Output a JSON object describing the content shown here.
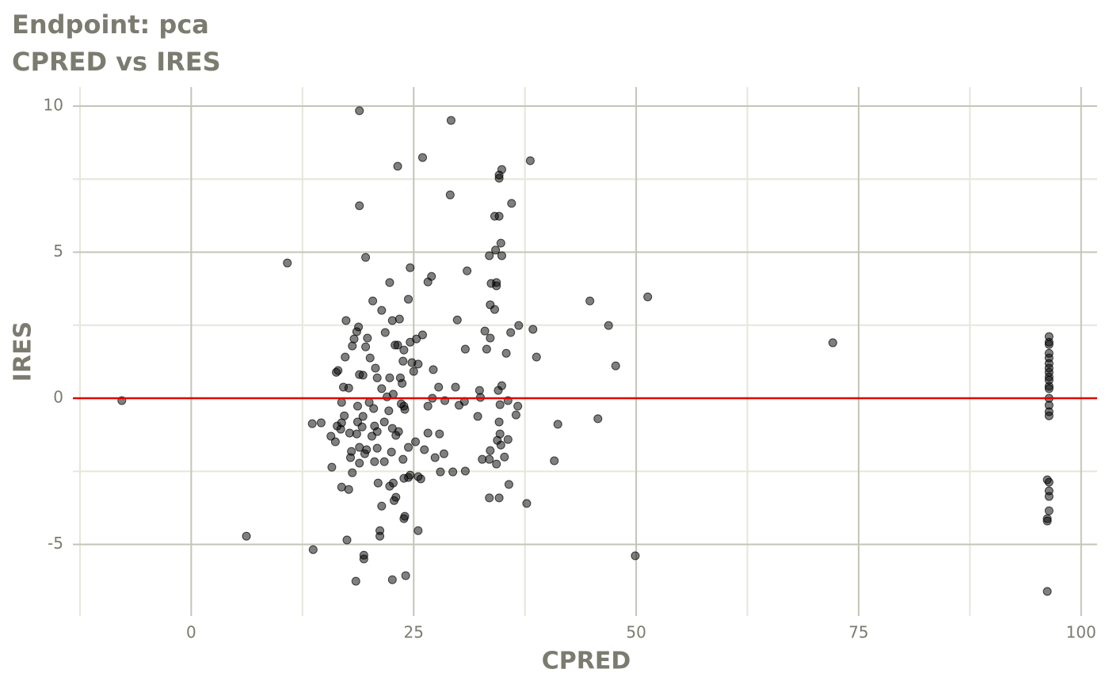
{
  "chart_data": {
    "type": "scatter",
    "title": "Endpoint:  pca",
    "subtitle": "CPRED vs IRES",
    "x_label": "CPRED",
    "y_label": "IRES",
    "color": "#000000",
    "hline": 0,
    "hline_color": "#e00000",
    "grid": true,
    "xlim": [
      -13.3,
      101.8
    ],
    "xticks": [
      0,
      25,
      50,
      75,
      100
    ],
    "ylim": [
      -7.45,
      10.65
    ],
    "yticks": [
      -5,
      0,
      5,
      10
    ],
    "x": [
      -7.8,
      10.8,
      6.2,
      13.7,
      18.9,
      29.2,
      26.0,
      23.2,
      38.1,
      29.1,
      34.9,
      34.6,
      34.6,
      36.0,
      18.9,
      34.1,
      34.6,
      34.8,
      34.2,
      33.5,
      34.9,
      19.6,
      24.6,
      31.0,
      27.0,
      22.3,
      26.6,
      33.7,
      34.3,
      34.3,
      20.4,
      24.4,
      44.8,
      51.3,
      33.6,
      21.4,
      34.1,
      17.4,
      22.6,
      23.4,
      29.9,
      18.8,
      18.6,
      36.8,
      46.9,
      38.4,
      21.8,
      33.0,
      26.0,
      35.9,
      18.3,
      19.8,
      33.6,
      25.3,
      24.6,
      72.1,
      22.9,
      23.2,
      18.1,
      19.6,
      30.8,
      33.2,
      23.9,
      35.4,
      38.8,
      17.3,
      20.1,
      23.8,
      24.8,
      25.5,
      47.7,
      20.7,
      27.2,
      16.5,
      16.3,
      25.0,
      18.9,
      19.3,
      20.9,
      22.3,
      23.5,
      23.7,
      17.1,
      17.7,
      21.4,
      27.8,
      29.7,
      32.4,
      34.5,
      34.9,
      22.0,
      22.7,
      27.1,
      28.5,
      32.5,
      30.7,
      35.6,
      16.9,
      20.0,
      18.7,
      23.6,
      23.9,
      26.6,
      30.1,
      34.7,
      36.7,
      20.5,
      24.0,
      22.2,
      17.2,
      19.3,
      32.2,
      36.5,
      45.7,
      34.6,
      18.7,
      16.9,
      13.6,
      14.6,
      21.7,
      20.6,
      41.2,
      16.4,
      19.2,
      16.8,
      22.6,
      20.9,
      23.3,
      17.8,
      18.6,
      26.6,
      27.9,
      23.0,
      34.7,
      15.7,
      20.3,
      25.2,
      34.4,
      35.6,
      16.2,
      34.8,
      18.9,
      24.4,
      26.2,
      20.9,
      19.7,
      33.6,
      18.0,
      22.5,
      19.5,
      28.4,
      27.4,
      17.9,
      35.2,
      32.7,
      33.5,
      23.8,
      40.8,
      20.6,
      21.7,
      18.9,
      34.3,
      15.8,
      18.1,
      28.0,
      29.4,
      30.8,
      24.6,
      24.4,
      25.5,
      25.8,
      23.9,
      21.0,
      22.7,
      35.7,
      22.3,
      16.9,
      17.7,
      23.0,
      33.5,
      34.6,
      22.8,
      37.7,
      21.4,
      24.0,
      23.9,
      21.2,
      25.5,
      21.2,
      17.5,
      49.9,
      19.4,
      19.4,
      24.1,
      18.5,
      22.6,
      96.4,
      96.4,
      96.4,
      96.4,
      96.4,
      96.4,
      96.4,
      96.4,
      96.4,
      96.4,
      96.4,
      96.4,
      96.4,
      96.4,
      96.4,
      96.4,
      96.2,
      96.4,
      96.4,
      96.4,
      96.4,
      96.2,
      96.2,
      96.2
    ],
    "values": [
      -0.08,
      4.63,
      -4.72,
      -5.18,
      9.84,
      9.51,
      8.24,
      7.94,
      8.13,
      6.96,
      7.83,
      7.64,
      7.53,
      6.67,
      6.59,
      6.23,
      6.23,
      5.31,
      5.07,
      4.88,
      4.88,
      4.82,
      4.47,
      4.36,
      4.17,
      3.96,
      3.98,
      3.93,
      3.96,
      3.85,
      3.33,
      3.39,
      3.33,
      3.47,
      3.2,
      3.01,
      3.04,
      2.66,
      2.66,
      2.71,
      2.68,
      2.44,
      2.28,
      2.49,
      2.49,
      2.36,
      2.25,
      2.3,
      2.17,
      2.25,
      2.03,
      2.06,
      2.06,
      2.03,
      1.92,
      1.9,
      1.82,
      1.82,
      1.79,
      1.76,
      1.68,
      1.68,
      1.65,
      1.54,
      1.41,
      1.41,
      1.38,
      1.27,
      1.22,
      1.17,
      1.11,
      1.03,
      0.98,
      0.95,
      0.89,
      0.92,
      0.81,
      0.79,
      0.7,
      0.7,
      0.7,
      0.51,
      0.38,
      0.35,
      0.33,
      0.38,
      0.38,
      0.27,
      0.27,
      0.43,
      0.05,
      0.14,
      0.0,
      -0.08,
      0.03,
      -0.11,
      -0.08,
      -0.14,
      -0.14,
      -0.27,
      -0.19,
      -0.27,
      -0.27,
      -0.24,
      -0.22,
      -0.27,
      -0.35,
      -0.38,
      -0.43,
      -0.6,
      -0.62,
      -0.62,
      -0.57,
      -0.7,
      -0.81,
      -0.81,
      -0.84,
      -0.87,
      -0.84,
      -0.81,
      -0.95,
      -0.89,
      -0.95,
      -0.98,
      -1.06,
      -1.03,
      -1.14,
      -1.14,
      -1.19,
      -1.22,
      -1.19,
      -1.22,
      -1.27,
      -1.22,
      -1.3,
      -1.3,
      -1.49,
      -1.44,
      -1.41,
      -1.49,
      -1.6,
      -1.68,
      -1.68,
      -1.76,
      -1.71,
      -1.76,
      -1.79,
      -1.82,
      -1.84,
      -1.9,
      -1.9,
      -2.03,
      -2.03,
      -2.01,
      -2.09,
      -2.09,
      -2.09,
      -2.14,
      -2.17,
      -2.17,
      -2.22,
      -2.25,
      -2.36,
      -2.55,
      -2.52,
      -2.52,
      -2.49,
      -2.63,
      -2.71,
      -2.68,
      -2.76,
      -2.74,
      -2.9,
      -2.9,
      -2.95,
      -3.01,
      -3.04,
      -3.12,
      -3.39,
      -3.41,
      -3.41,
      -3.5,
      -3.6,
      -3.69,
      -4.04,
      -4.12,
      -4.53,
      -4.53,
      -4.72,
      -4.85,
      -5.39,
      -5.37,
      -5.5,
      -6.07,
      -6.26,
      -6.21,
      2.11,
      1.92,
      1.84,
      1.54,
      1.38,
      1.19,
      1.03,
      0.89,
      0.73,
      0.62,
      0.41,
      0.33,
      0.0,
      -0.24,
      -0.46,
      -0.6,
      -2.79,
      -2.87,
      -3.17,
      -3.36,
      -3.85,
      -4.12,
      -4.2,
      -6.61
    ]
  }
}
